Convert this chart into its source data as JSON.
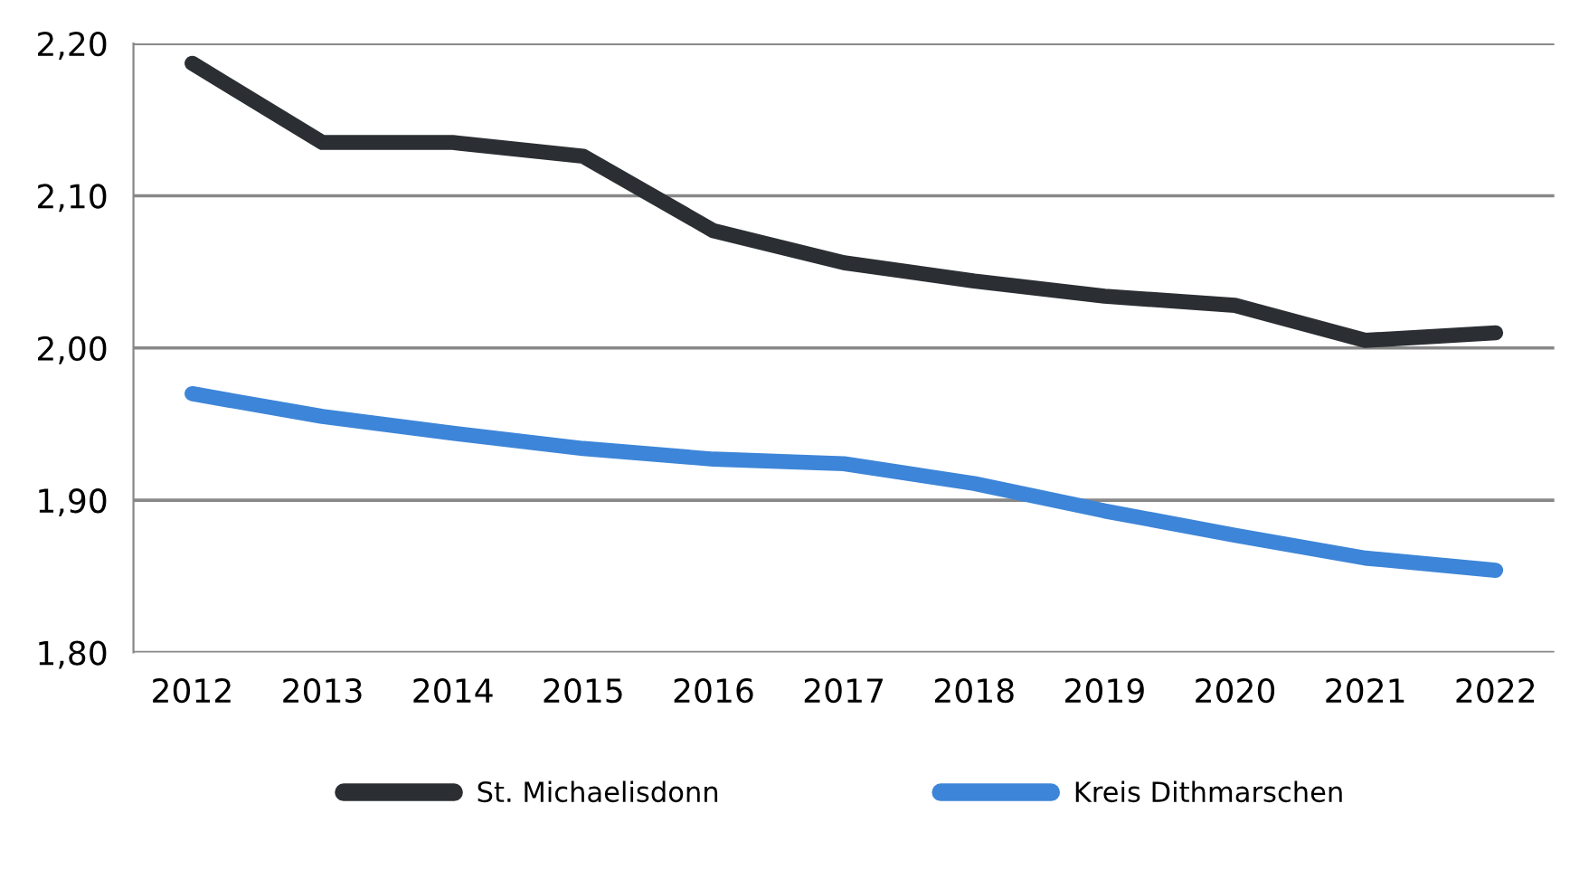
{
  "chart_data": {
    "type": "line",
    "categories": [
      "2012",
      "2013",
      "2014",
      "2015",
      "2016",
      "2017",
      "2018",
      "2019",
      "2020",
      "2021",
      "2022"
    ],
    "series": [
      {
        "name": "St. Michaelisdonn",
        "color": "#2b2f33",
        "values": [
          2.187,
          2.135,
          2.135,
          2.126,
          2.077,
          2.056,
          2.044,
          2.034,
          2.028,
          2.005,
          2.01
        ]
      },
      {
        "name": "Kreis Dithmarschen",
        "color": "#3d85d8",
        "values": [
          1.97,
          1.955,
          1.944,
          1.934,
          1.927,
          1.924,
          1.911,
          1.893,
          1.877,
          1.862,
          1.854
        ]
      }
    ],
    "ylim": [
      1.8,
      2.2
    ],
    "yticks": [
      {
        "value": 1.8,
        "label": "1,80"
      },
      {
        "value": 1.9,
        "label": "1,90"
      },
      {
        "value": 2.0,
        "label": "2,00"
      },
      {
        "value": 2.1,
        "label": "2,10"
      },
      {
        "value": 2.2,
        "label": "2,20"
      }
    ],
    "grid": "y",
    "legend": "bottom",
    "line_style": "solid",
    "marker": "none"
  }
}
